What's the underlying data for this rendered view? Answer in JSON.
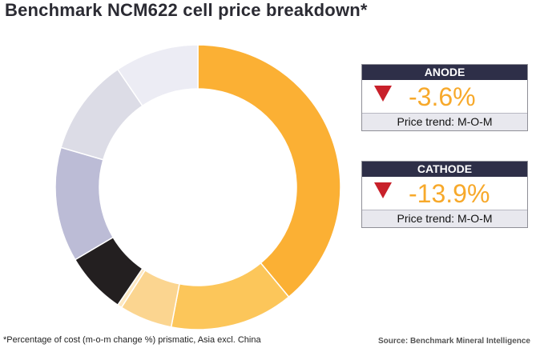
{
  "title": "Benchmark NCM622 cell price breakdown*",
  "chart_data": {
    "type": "pie",
    "title": "Benchmark NCM622 cell price breakdown*",
    "slices": [
      {
        "value": 39,
        "color": "#fbb034"
      },
      {
        "value": 14,
        "color": "#fcc65a"
      },
      {
        "value": 6,
        "color": "#fbd590"
      },
      {
        "value": 0.5,
        "color": "#fde8c2"
      },
      {
        "value": 7,
        "color": "#231f20"
      },
      {
        "value": 13,
        "color": "#bcbcd6"
      },
      {
        "value": 11,
        "color": "#dcdce6"
      },
      {
        "value": 9.5,
        "color": "#ececf4"
      }
    ]
  },
  "cards": [
    {
      "header": "ANODE",
      "value": "-3.6%",
      "trend": "Price trend: M-O-M"
    },
    {
      "header": "CATHODE",
      "value": "-13.9%",
      "trend": "Price trend: M-O-M"
    }
  ],
  "colors": {
    "header_bg": "#2e2f48",
    "value": "#f7a92b",
    "down_arrow": "#c8202a"
  },
  "icons": {
    "trend": "down-triangle-icon"
  },
  "footnote": "*Percentage of cost (m-o-m change %) prismatic, Asia excl. China",
  "source": "Source: Benchmark Mineral Intelligence"
}
